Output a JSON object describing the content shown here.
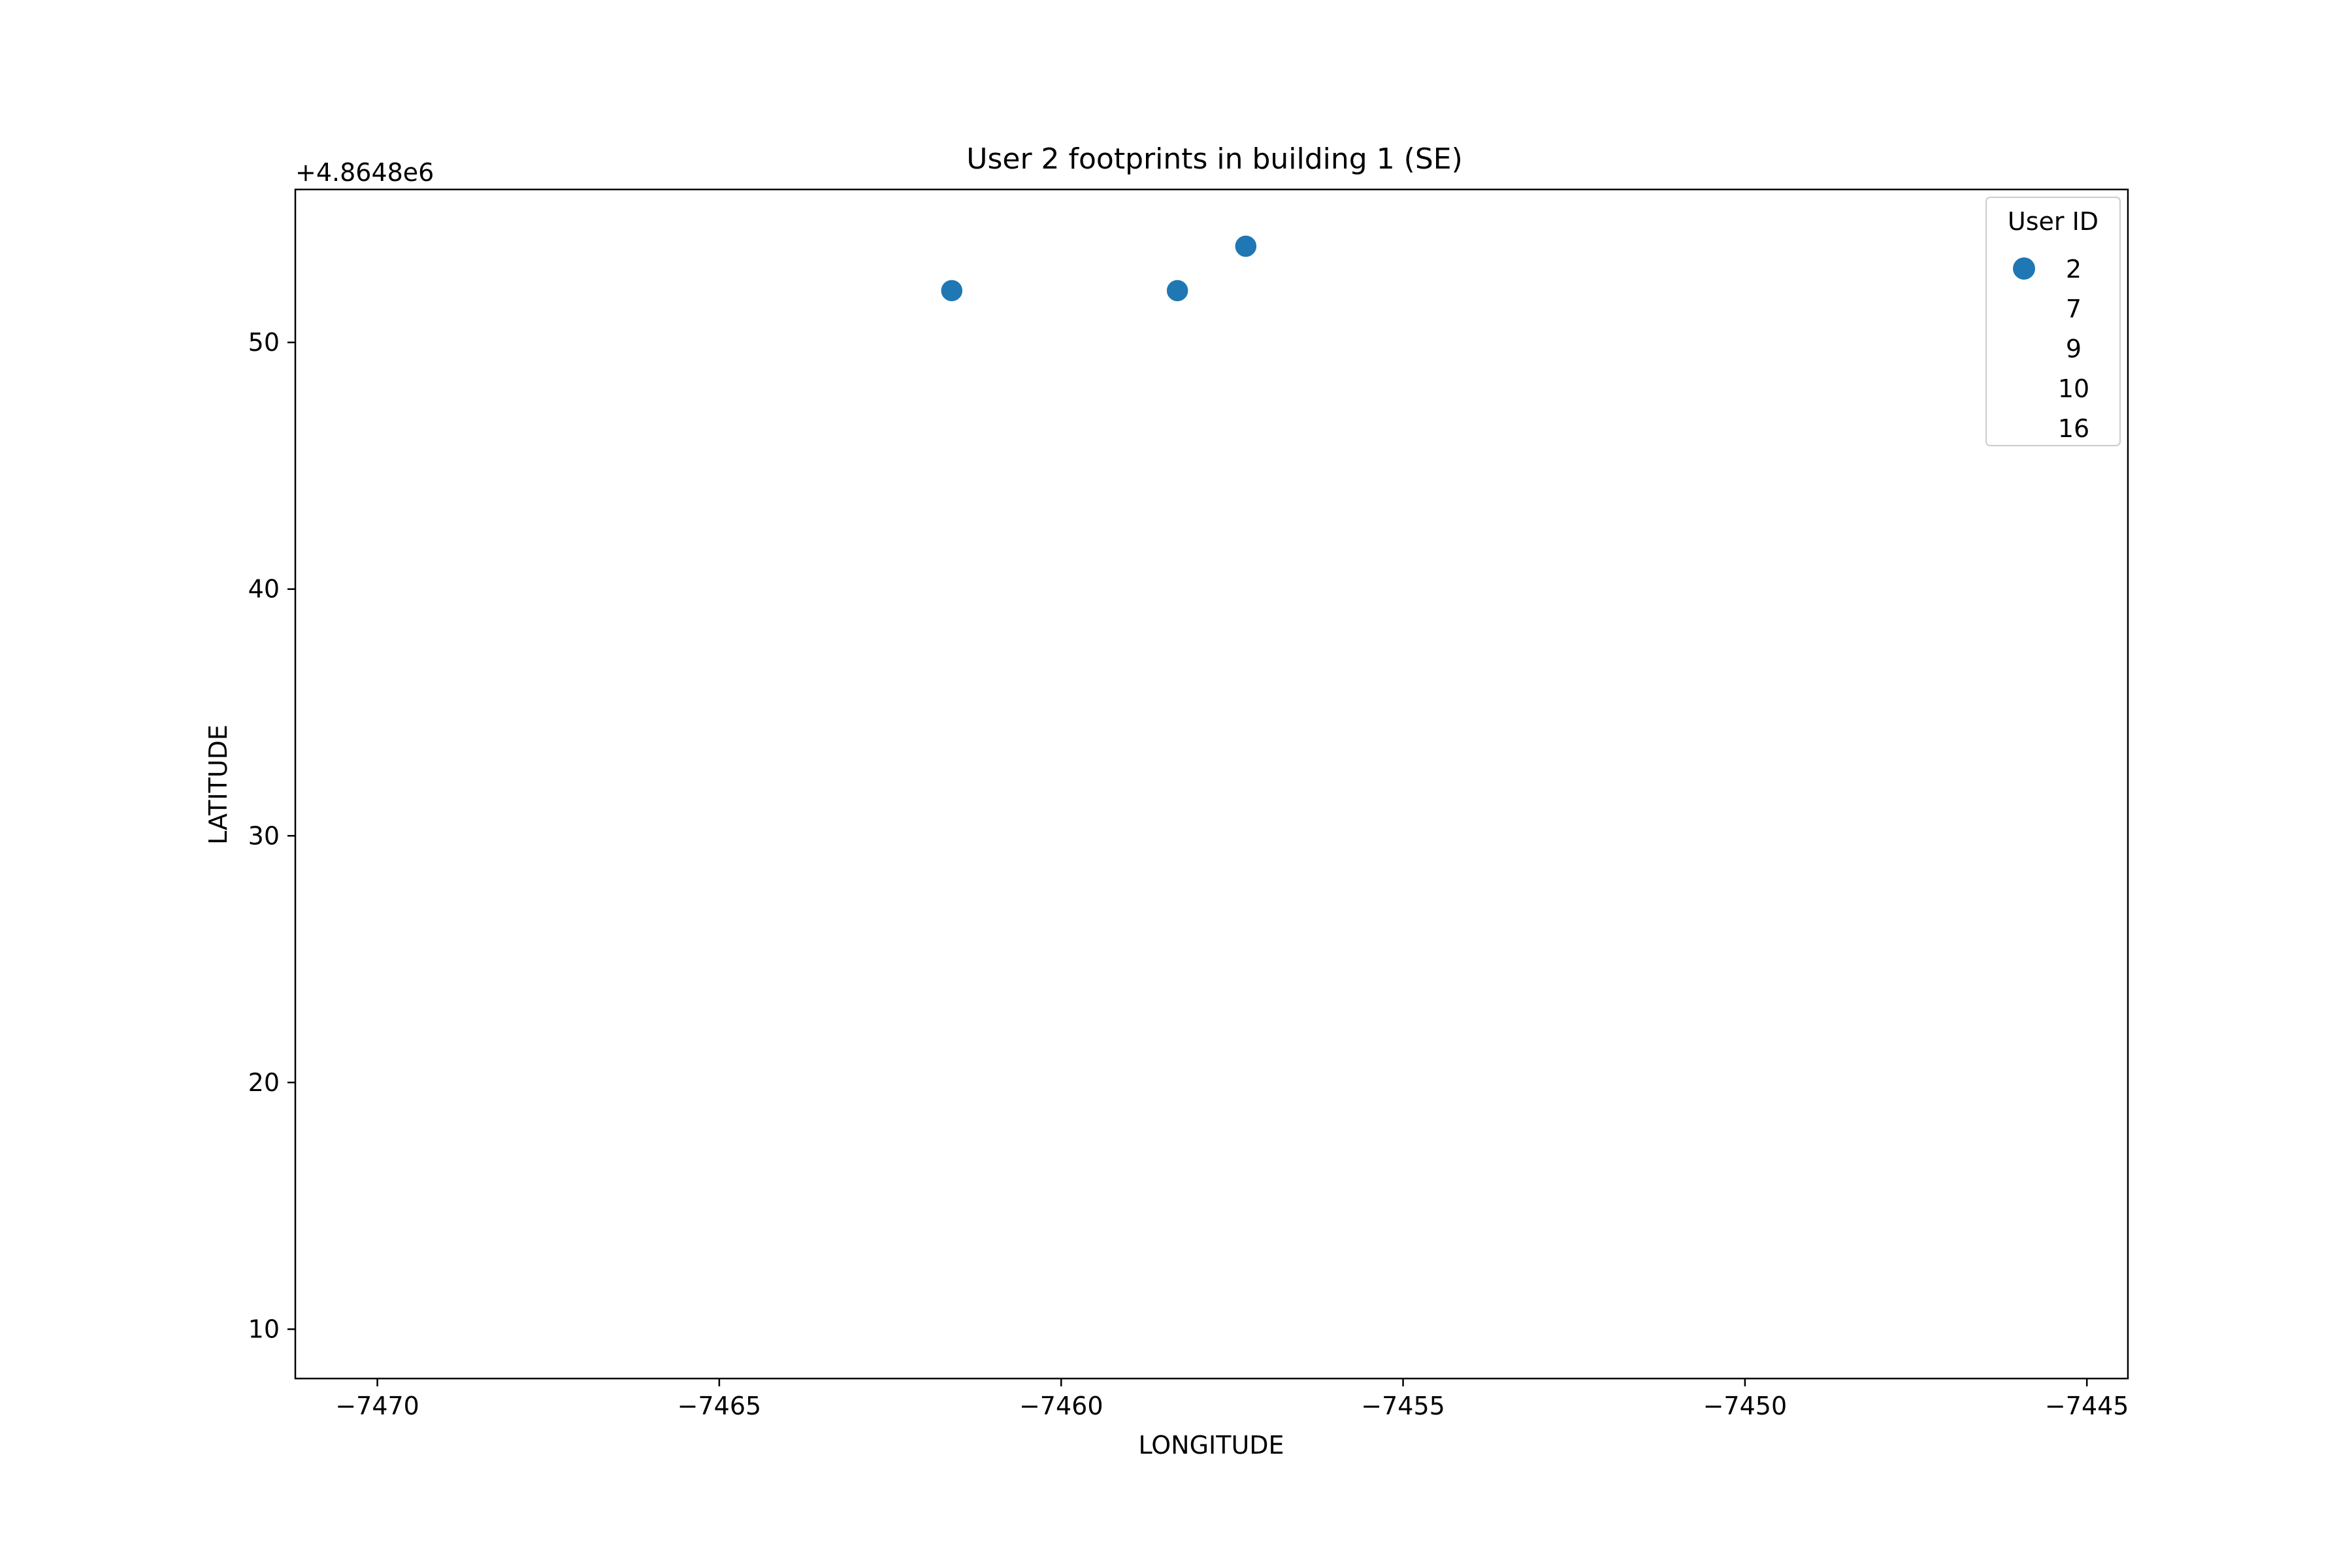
{
  "chart_data": {
    "type": "scatter",
    "title": "User 2 footprints in building 1 (SE)",
    "xlabel": "LONGITUDE",
    "ylabel": "LATITUDE",
    "y_offset_label": "+4.8648e6",
    "xlim": [
      -7471.2,
      -7444.4
    ],
    "ylim": [
      8,
      56.2
    ],
    "xticks": [
      -7470,
      -7465,
      -7460,
      -7455,
      -7450,
      -7445
    ],
    "xtick_labels": [
      "−7470",
      "−7465",
      "−7460",
      "−7455",
      "−7450",
      "−7445"
    ],
    "yticks": [
      10,
      20,
      30,
      40,
      50
    ],
    "ytick_labels": [
      "10",
      "20",
      "30",
      "40",
      "50"
    ],
    "grid": false,
    "marker_color": "#1f77b4",
    "legend": {
      "title": "User ID",
      "placement": "top-right",
      "entries": [
        "2",
        "7",
        "9",
        "10",
        "16"
      ],
      "entry_colors": [
        "#1f77b4",
        null,
        null,
        null,
        null
      ]
    },
    "series": [
      {
        "name": "2",
        "points": [
          {
            "x": -7461.6,
            "y": 52.1
          },
          {
            "x": -7458.3,
            "y": 52.1
          },
          {
            "x": -7457.3,
            "y": 53.9
          }
        ]
      }
    ]
  }
}
